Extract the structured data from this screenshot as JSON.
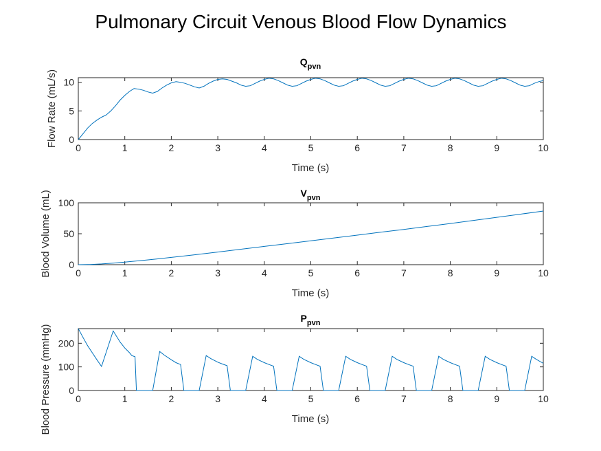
{
  "figure": {
    "title": "Pulmonary Circuit Venous Blood Flow Dynamics"
  },
  "chart_data": [
    {
      "type": "line",
      "title_main": "Q",
      "title_sub": "pvn",
      "xlabel": "Time (s)",
      "ylabel": "Flow Rate (mL/s)",
      "xlim": [
        0,
        10
      ],
      "ylim": [
        0,
        10.8
      ],
      "xticks": [
        "0",
        "1",
        "2",
        "3",
        "4",
        "5",
        "6",
        "7",
        "8",
        "9",
        "10"
      ],
      "yticks": [
        {
          "v": 0,
          "label": "0"
        },
        {
          "v": 5,
          "label": "5"
        },
        {
          "v": 10,
          "label": "10"
        }
      ],
      "color": "#0072bd",
      "x": [
        0,
        0.1,
        0.2,
        0.3,
        0.4,
        0.5,
        0.6,
        0.7,
        0.8,
        0.9,
        1.0,
        1.1,
        1.2,
        1.3,
        1.4,
        1.5,
        1.6,
        1.7,
        1.8,
        1.9,
        2.0,
        2.1,
        2.2,
        2.3,
        2.4,
        2.5,
        2.6,
        2.7,
        2.8,
        2.9,
        3.0,
        3.1,
        3.2,
        3.3,
        3.4,
        3.5,
        3.6,
        3.7,
        3.8,
        3.9,
        4.0,
        4.1,
        4.2,
        4.3,
        4.4,
        4.5,
        4.6,
        4.7,
        4.8,
        4.9,
        5.0,
        5.1,
        5.2,
        5.3,
        5.4,
        5.5,
        5.6,
        5.7,
        5.8,
        5.9,
        6.0,
        6.1,
        6.2,
        6.3,
        6.4,
        6.5,
        6.6,
        6.7,
        6.8,
        6.9,
        7.0,
        7.1,
        7.2,
        7.3,
        7.4,
        7.5,
        7.6,
        7.7,
        7.8,
        7.9,
        8.0,
        8.1,
        8.2,
        8.3,
        8.4,
        8.5,
        8.6,
        8.7,
        8.8,
        8.9,
        9.0,
        9.1,
        9.2,
        9.3,
        9.4,
        9.5,
        9.6,
        9.7,
        9.8,
        9.9,
        10.0
      ],
      "y": [
        0,
        1.0,
        2.0,
        2.8,
        3.4,
        3.9,
        4.3,
        5.0,
        5.9,
        6.9,
        7.7,
        8.4,
        8.9,
        8.8,
        8.6,
        8.3,
        8.1,
        8.4,
        9.0,
        9.5,
        9.9,
        10.1,
        10.0,
        9.8,
        9.5,
        9.2,
        9.0,
        9.3,
        9.8,
        10.2,
        10.5,
        10.6,
        10.5,
        10.2,
        9.9,
        9.5,
        9.3,
        9.4,
        9.8,
        10.2,
        10.5,
        10.7,
        10.6,
        10.3,
        9.9,
        9.5,
        9.3,
        9.4,
        9.8,
        10.2,
        10.5,
        10.7,
        10.6,
        10.3,
        9.9,
        9.5,
        9.3,
        9.4,
        9.8,
        10.2,
        10.5,
        10.7,
        10.6,
        10.3,
        9.9,
        9.5,
        9.3,
        9.4,
        9.8,
        10.2,
        10.5,
        10.7,
        10.6,
        10.3,
        9.9,
        9.5,
        9.3,
        9.4,
        9.8,
        10.2,
        10.5,
        10.7,
        10.6,
        10.3,
        9.9,
        9.5,
        9.3,
        9.4,
        9.8,
        10.2,
        10.5,
        10.7,
        10.6,
        10.3,
        9.9,
        9.5,
        9.3,
        9.4,
        9.8,
        10.1,
        10.3
      ]
    },
    {
      "type": "line",
      "title_main": "V",
      "title_sub": "pvn",
      "xlabel": "Time (s)",
      "ylabel": "Blood Volume (mL)",
      "xlim": [
        0,
        10
      ],
      "ylim": [
        0,
        100
      ],
      "xticks": [
        "0",
        "1",
        "2",
        "3",
        "4",
        "5",
        "6",
        "7",
        "8",
        "9",
        "10"
      ],
      "yticks": [
        {
          "v": 0,
          "label": "0"
        },
        {
          "v": 50,
          "label": "50"
        },
        {
          "v": 100,
          "label": "100"
        }
      ],
      "color": "#0072bd",
      "x": [
        0,
        0.25,
        0.5,
        0.75,
        1.0,
        1.25,
        1.5,
        1.75,
        2.0,
        2.5,
        3.0,
        3.5,
        4.0,
        4.5,
        5.0,
        5.5,
        6.0,
        6.5,
        7.0,
        7.5,
        8.0,
        8.5,
        9.0,
        9.5,
        10.0
      ],
      "y": [
        0,
        0.3,
        1.2,
        2.6,
        4.2,
        6.0,
        7.8,
        9.8,
        11.8,
        16.0,
        20.5,
        25.0,
        29.5,
        34.0,
        38.6,
        43.2,
        47.8,
        52.4,
        57.0,
        61.8,
        66.6,
        71.6,
        76.6,
        81.6,
        86.7
      ]
    },
    {
      "type": "line",
      "title_main": "P",
      "title_sub": "pvn",
      "xlabel": "Time (s)",
      "ylabel": "Blood Pressure (mmHg)",
      "xlim": [
        0,
        10
      ],
      "ylim": [
        0,
        262
      ],
      "xticks": [
        "0",
        "1",
        "2",
        "3",
        "4",
        "5",
        "6",
        "7",
        "8",
        "9",
        "10"
      ],
      "yticks": [
        {
          "v": 0,
          "label": "0"
        },
        {
          "v": 100,
          "label": "100"
        },
        {
          "v": 200,
          "label": "200"
        }
      ],
      "color": "#0072bd",
      "x": [
        0,
        0.1,
        0.2,
        0.3,
        0.4,
        0.5,
        0.75,
        0.9,
        1.0,
        1.1,
        1.15,
        1.22,
        1.25,
        1.6,
        1.75,
        1.85,
        2.0,
        2.1,
        2.2,
        2.27,
        2.6,
        2.75,
        2.85,
        3.0,
        3.1,
        3.2,
        3.27,
        3.6,
        3.75,
        3.85,
        4.0,
        4.1,
        4.2,
        4.27,
        4.6,
        4.75,
        4.85,
        5.0,
        5.1,
        5.2,
        5.27,
        5.6,
        5.75,
        5.85,
        6.0,
        6.1,
        6.2,
        6.27,
        6.6,
        6.75,
        6.85,
        7.0,
        7.1,
        7.2,
        7.27,
        7.6,
        7.75,
        7.85,
        8.0,
        8.1,
        8.2,
        8.27,
        8.6,
        8.75,
        8.85,
        9.0,
        9.1,
        9.2,
        9.27,
        9.6,
        9.75,
        9.85,
        10.0
      ],
      "y": [
        262,
        225,
        190,
        160,
        130,
        102,
        252,
        205,
        180,
        160,
        148,
        143,
        0,
        0,
        165,
        150,
        130,
        118,
        110,
        0,
        0,
        148,
        135,
        120,
        112,
        105,
        0,
        0,
        145,
        132,
        118,
        110,
        103,
        0,
        0,
        145,
        132,
        118,
        110,
        103,
        0,
        0,
        145,
        132,
        118,
        110,
        103,
        0,
        0,
        145,
        132,
        118,
        110,
        103,
        0,
        0,
        145,
        132,
        118,
        110,
        103,
        0,
        0,
        145,
        132,
        118,
        110,
        103,
        0,
        0,
        145,
        132,
        115
      ]
    }
  ]
}
